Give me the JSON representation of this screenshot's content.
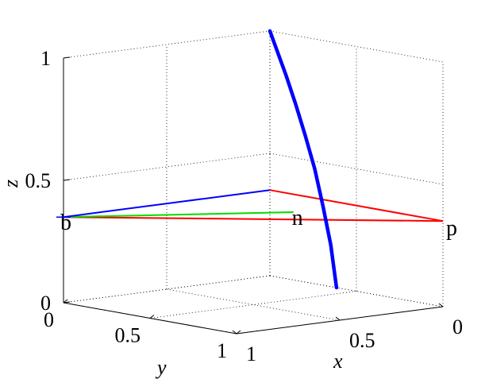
{
  "chart_data": {
    "type": "line",
    "projection": "3d",
    "grid": true,
    "xlabel": "x",
    "ylabel": "y",
    "zlabel": "z",
    "xlim": [
      0,
      1
    ],
    "ylim": [
      0,
      1
    ],
    "zlim": [
      0,
      1
    ],
    "x_ticks": [
      "0",
      "0.5",
      "1"
    ],
    "y_ticks": [
      "0",
      "0.5",
      "1"
    ],
    "z_ticks": [
      "0",
      "0.5",
      "1"
    ],
    "curve": {
      "color": "#0000ff",
      "x": [
        0.45,
        0.45,
        0.45,
        0.45,
        0.45,
        0.45,
        0.45,
        0.45,
        0.45
      ],
      "y": [
        0.0,
        0.0,
        0.0,
        0.0,
        0.0,
        0.0,
        0.0,
        0.0,
        0.0
      ],
      "z": [
        1.0,
        0.92,
        0.83,
        0.72,
        0.6,
        0.47,
        0.32,
        0.17,
        0.0
      ],
      "bend_y": [
        0.0,
        0.08,
        0.17,
        0.27,
        0.37,
        0.47,
        0.56,
        0.64,
        0.7
      ]
    },
    "points": {
      "b": {
        "label": "b",
        "x": 0.0,
        "y": 1.0,
        "z": 0.35
      },
      "p": {
        "label": "p",
        "x": 1.0,
        "y": 0.0,
        "z": 0.35
      },
      "n": {
        "label": "n",
        "x": 0.47,
        "y": 0.28,
        "z": 0.35
      },
      "base": {
        "x": 0.0,
        "y": 0.0,
        "z": 0.35
      }
    },
    "segments": [
      {
        "from": "b",
        "to": "p",
        "color": "#ff0000"
      },
      {
        "from": "base",
        "to": "p",
        "color": "#ff0000"
      },
      {
        "from": "b",
        "to": "n",
        "color": "#00dd00"
      },
      {
        "from": "b",
        "to": "base",
        "color": "#0000ff"
      }
    ]
  }
}
